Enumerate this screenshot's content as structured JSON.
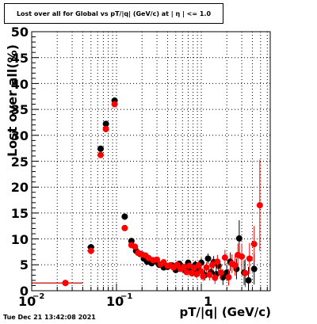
{
  "chart_data": {
    "type": "scatter",
    "title": "Lost over all for Global vs pT/|q| (GeV/c) at |  η | <= 1.0",
    "xlabel": "pT/|q| (GeV/c)",
    "ylabel": "Lost over all(%)",
    "xscale": "log",
    "xlim": [
      0.01,
      6.5
    ],
    "ylim": [
      0,
      50
    ],
    "grid": true,
    "x_tick_labels": [
      "10",
      "−2",
      "10",
      "−1",
      "1"
    ],
    "y_ticks": [
      0,
      5,
      10,
      15,
      20,
      25,
      30,
      35,
      40,
      45,
      50
    ],
    "footer": "Tue Dec 21 13:42:08 2021",
    "series": [
      {
        "color": "#000000",
        "points": [
          {
            "x": 0.025,
            "y": 1.5,
            "xerr": [
              0.015,
              0.015
            ],
            "yerr": 0.3
          },
          {
            "x": 0.05,
            "y": 8.4,
            "xerr": [
              0.005,
              0.005
            ],
            "yerr": 0.5
          },
          {
            "x": 0.065,
            "y": 27.4,
            "xerr": [
              0.005,
              0.005
            ],
            "yerr": 0.6
          },
          {
            "x": 0.075,
            "y": 32.2,
            "xerr": [
              0.005,
              0.005
            ],
            "yerr": 0.6
          },
          {
            "x": 0.095,
            "y": 36.7,
            "xerr": [
              0.008,
              0.008
            ],
            "yerr": 0.5
          },
          {
            "x": 0.125,
            "y": 14.3,
            "xerr": [
              0.01,
              0.01
            ],
            "yerr": 0.4
          },
          {
            "x": 0.15,
            "y": 9.6,
            "yerr": 0.4
          },
          {
            "x": 0.17,
            "y": 7.7,
            "yerr": 0.4
          },
          {
            "x": 0.19,
            "y": 7.1,
            "yerr": 0.4
          },
          {
            "x": 0.21,
            "y": 6.2,
            "yerr": 0.4
          },
          {
            "x": 0.23,
            "y": 5.6,
            "yerr": 0.4
          },
          {
            "x": 0.26,
            "y": 5.3,
            "yerr": 0.4
          },
          {
            "x": 0.29,
            "y": 5.7,
            "yerr": 0.4
          },
          {
            "x": 0.32,
            "y": 5.0,
            "yerr": 0.4
          },
          {
            "x": 0.36,
            "y": 4.5,
            "yerr": 0.4
          },
          {
            "x": 0.4,
            "y": 4.6,
            "yerr": 0.4
          },
          {
            "x": 0.45,
            "y": 4.9,
            "yerr": 0.5
          },
          {
            "x": 0.5,
            "y": 4.0,
            "yerr": 0.5
          },
          {
            "x": 0.55,
            "y": 5.2,
            "yerr": 0.5
          },
          {
            "x": 0.6,
            "y": 4.6,
            "yerr": 0.6
          },
          {
            "x": 0.65,
            "y": 3.9,
            "yerr": 0.6
          },
          {
            "x": 0.7,
            "y": 5.4,
            "yerr": 0.6
          },
          {
            "x": 0.75,
            "y": 4.2,
            "yerr": 0.7
          },
          {
            "x": 0.8,
            "y": 3.7,
            "yerr": 0.7
          },
          {
            "x": 0.85,
            "y": 5.0,
            "yerr": 0.8
          },
          {
            "x": 0.9,
            "y": 4.3,
            "yerr": 0.8
          },
          {
            "x": 0.95,
            "y": 3.8,
            "yerr": 0.9
          },
          {
            "x": 1.0,
            "y": 5.4,
            "yerr": 0.9
          },
          {
            "x": 1.1,
            "y": 3.0,
            "yerr": 1.0
          },
          {
            "x": 1.2,
            "y": 6.2,
            "yerr": 1.0
          },
          {
            "x": 1.3,
            "y": 3.6,
            "yerr": 1.1
          },
          {
            "x": 1.4,
            "y": 5.5,
            "yerr": 1.2
          },
          {
            "x": 1.5,
            "y": 3.2,
            "yerr": 1.3
          },
          {
            "x": 1.6,
            "y": 4.8,
            "yerr": 1.3
          },
          {
            "x": 1.8,
            "y": 2.6,
            "yerr": 1.5
          },
          {
            "x": 2.0,
            "y": 3.5,
            "yerr": 1.6
          },
          {
            "x": 2.2,
            "y": 5.6,
            "yerr": 1.8
          },
          {
            "x": 2.6,
            "y": 4.2,
            "yerr": 2.0
          },
          {
            "x": 2.8,
            "y": 10.1,
            "yerr": 3.5
          },
          {
            "x": 3.2,
            "y": 3.5,
            "yerr": 2.4
          },
          {
            "x": 3.6,
            "y": 2.0,
            "yerr": 2.6
          },
          {
            "x": 4.2,
            "y": 4.2,
            "yerr": 3.0
          }
        ]
      },
      {
        "color": "#ff0000",
        "points": [
          {
            "x": 0.025,
            "y": 1.5,
            "xerr": [
              0.015,
              0.015
            ],
            "yerr": 0.3
          },
          {
            "x": 0.05,
            "y": 7.7,
            "xerr": [
              0.005,
              0.005
            ],
            "yerr": 0.5
          },
          {
            "x": 0.065,
            "y": 26.2,
            "xerr": [
              0.005,
              0.005
            ],
            "yerr": 0.6
          },
          {
            "x": 0.075,
            "y": 31.2,
            "xerr": [
              0.005,
              0.005
            ],
            "yerr": 0.6
          },
          {
            "x": 0.095,
            "y": 36.0,
            "xerr": [
              0.008,
              0.008
            ],
            "yerr": 0.5
          },
          {
            "x": 0.125,
            "y": 12.1,
            "xerr": [
              0.01,
              0.01
            ],
            "yerr": 0.4
          },
          {
            "x": 0.15,
            "y": 8.8,
            "yerr": 0.4
          },
          {
            "x": 0.165,
            "y": 8.5,
            "yerr": 0.4
          },
          {
            "x": 0.18,
            "y": 7.3,
            "yerr": 0.4
          },
          {
            "x": 0.2,
            "y": 7.0,
            "yerr": 0.4
          },
          {
            "x": 0.22,
            "y": 6.8,
            "yerr": 0.4
          },
          {
            "x": 0.24,
            "y": 6.3,
            "yerr": 0.4
          },
          {
            "x": 0.27,
            "y": 5.9,
            "yerr": 0.4
          },
          {
            "x": 0.3,
            "y": 6.0,
            "yerr": 0.4
          },
          {
            "x": 0.33,
            "y": 5.1,
            "yerr": 0.4
          },
          {
            "x": 0.36,
            "y": 5.5,
            "yerr": 0.4
          },
          {
            "x": 0.4,
            "y": 4.8,
            "yerr": 0.4
          },
          {
            "x": 0.43,
            "y": 4.9,
            "yerr": 0.5
          },
          {
            "x": 0.47,
            "y": 4.5,
            "yerr": 0.5
          },
          {
            "x": 0.52,
            "y": 5.0,
            "yerr": 0.5
          },
          {
            "x": 0.57,
            "y": 4.2,
            "yerr": 0.5
          },
          {
            "x": 0.62,
            "y": 4.6,
            "yerr": 0.6
          },
          {
            "x": 0.67,
            "y": 3.6,
            "yerr": 0.6
          },
          {
            "x": 0.72,
            "y": 4.8,
            "yerr": 0.6
          },
          {
            "x": 0.77,
            "y": 3.4,
            "yerr": 0.7
          },
          {
            "x": 0.82,
            "y": 4.4,
            "yerr": 0.7
          },
          {
            "x": 0.88,
            "y": 3.2,
            "yerr": 0.8
          },
          {
            "x": 0.93,
            "y": 4.9,
            "yerr": 0.8
          },
          {
            "x": 1.0,
            "y": 3.7,
            "yerr": 0.9
          },
          {
            "x": 1.05,
            "y": 2.8,
            "yerr": 0.9
          },
          {
            "x": 1.15,
            "y": 4.5,
            "yerr": 1.0
          },
          {
            "x": 1.25,
            "y": 3.1,
            "yerr": 1.1
          },
          {
            "x": 1.35,
            "y": 5.0,
            "yerr": 1.2
          },
          {
            "x": 1.45,
            "y": 2.5,
            "yerr": 1.2
          },
          {
            "x": 1.55,
            "y": 5.6,
            "yerr": 1.3
          },
          {
            "x": 1.7,
            "y": 3.5,
            "yerr": 1.4
          },
          {
            "x": 1.9,
            "y": 6.4,
            "yerr": 1.5
          },
          {
            "x": 2.1,
            "y": 2.6,
            "yerr": 1.6
          },
          {
            "x": 2.3,
            "y": 5.2,
            "yerr": 1.8
          },
          {
            "x": 2.5,
            "y": 4.9,
            "yerr": 2.0
          },
          {
            "x": 2.7,
            "y": 6.9,
            "yerr": 2.2
          },
          {
            "x": 3.0,
            "y": 6.6,
            "yerr": 2.5
          },
          {
            "x": 3.3,
            "y": 3.4,
            "yerr": 2.7
          },
          {
            "x": 3.7,
            "y": 6.2,
            "yerr": 3.0
          },
          {
            "x": 4.2,
            "y": 9.0,
            "yerr": 3.5
          },
          {
            "x": 4.9,
            "y": 16.5,
            "yerr": 8.8
          }
        ]
      }
    ]
  }
}
